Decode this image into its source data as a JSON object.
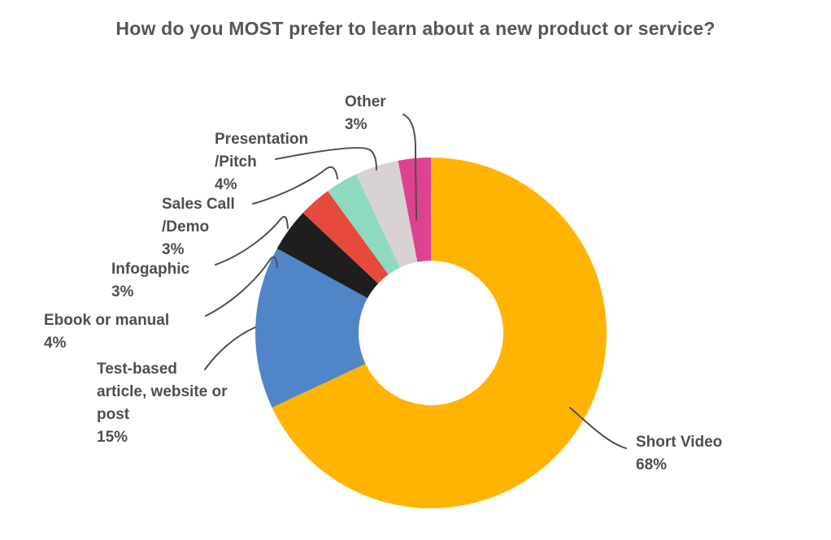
{
  "page": {
    "background_color": "#FFFFFF"
  },
  "chart_data": {
    "type": "pie",
    "subtype": "donut",
    "title": "How do you MOST prefer to learn about a new product or service?",
    "unit": "%",
    "direction": "clockwise",
    "start_angle_deg": 0,
    "inner_radius_ratio": 0.41,
    "grid": false,
    "legend_position": "callout-labels",
    "segments": [
      {
        "label": "Short Video",
        "value": 68,
        "color": "#FFB404"
      },
      {
        "label": "Test-based article, website or post",
        "value": 15,
        "color": "#5086C8"
      },
      {
        "label": "Ebook or manual",
        "value": 4,
        "color": "#1E1E1E"
      },
      {
        "label": "Infogaphic",
        "value": 3,
        "color": "#E8493D"
      },
      {
        "label": "Sales Call /Demo",
        "value": 3,
        "color": "#8EDAC1"
      },
      {
        "label": "Presentation /Pitch",
        "value": 4,
        "color": "#D8D2D2"
      },
      {
        "label": "Other",
        "value": 3,
        "color": "#DF4191"
      }
    ]
  },
  "callouts": [
    {
      "id": "other",
      "lines": [
        "Other",
        "3%"
      ]
    },
    {
      "id": "presentation",
      "lines": [
        "Presentation",
        "/Pitch",
        "4%"
      ]
    },
    {
      "id": "sales",
      "lines": [
        "Sales Call",
        "/Demo",
        "3%"
      ]
    },
    {
      "id": "infogaphic",
      "lines": [
        "Infogaphic",
        "3%"
      ]
    },
    {
      "id": "ebook",
      "lines": [
        "Ebook or manual",
        "4%"
      ]
    },
    {
      "id": "testbased",
      "lines": [
        "Test-based",
        "article, website or",
        "post",
        "15%"
      ]
    },
    {
      "id": "shortvideo",
      "lines": [
        "Short Video",
        "68%"
      ]
    }
  ],
  "styles": {
    "title_color": "#55565A",
    "label_text_color": "#4D4E50",
    "leader_line_color": "#4D4E50"
  }
}
